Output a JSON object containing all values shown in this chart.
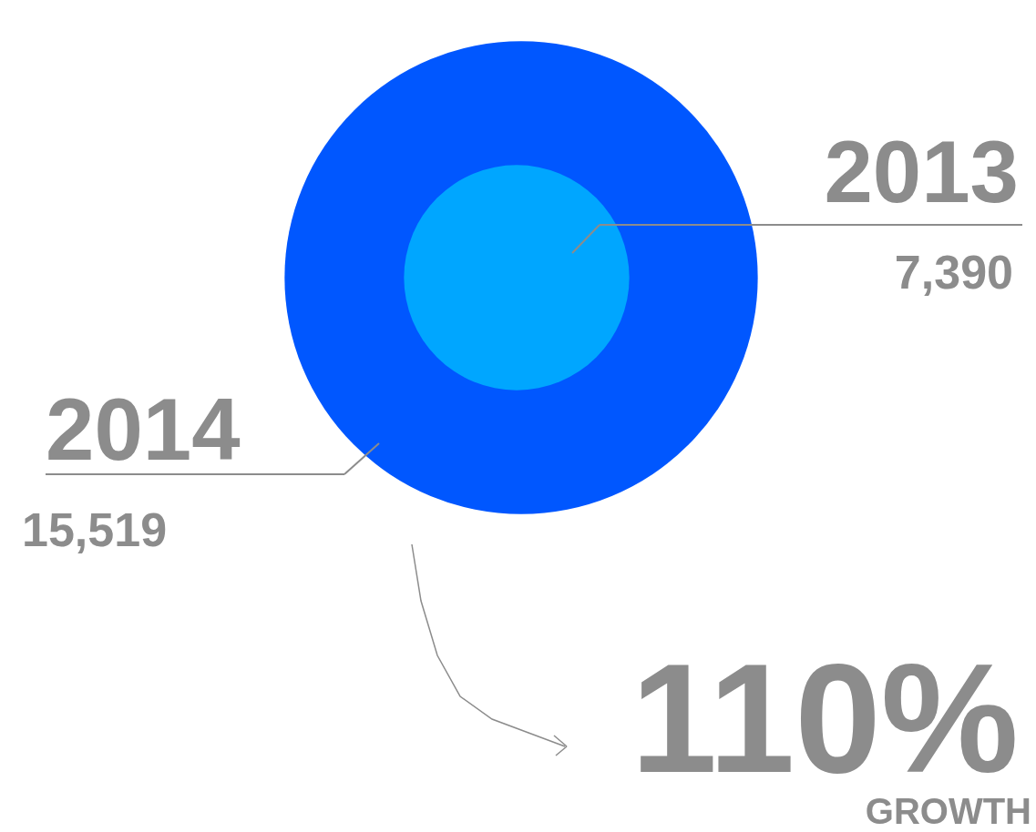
{
  "chart_data": {
    "type": "other",
    "categories": [
      "2013",
      "2014"
    ],
    "values": [
      7390,
      15519
    ],
    "colors": [
      "#00a6ff",
      "#0057ff"
    ],
    "value_labels": [
      "7,390",
      "15,519"
    ],
    "annotations": [
      "110%",
      "GROWTH"
    ]
  }
}
